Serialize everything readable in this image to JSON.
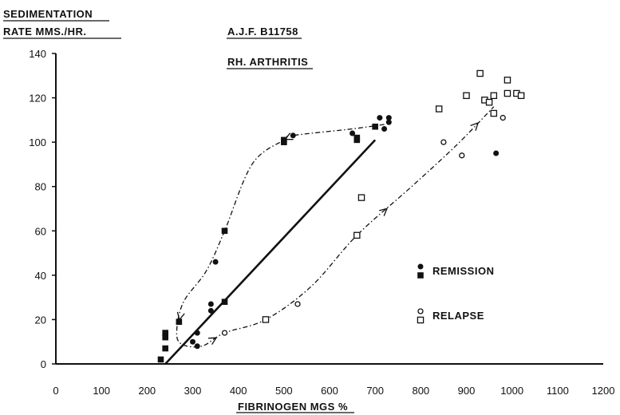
{
  "chart_data": {
    "type": "scatter",
    "title": "",
    "annotations": [
      "A.J.F.   B11758",
      "RH. ARTHRITIS"
    ],
    "ylabel_lines": [
      "SEDIMENTATION",
      "RATE MMS./HR."
    ],
    "xlabel": "FIBRINOGEN  MGS %",
    "xlim": [
      0,
      1200
    ],
    "ylim": [
      0,
      140
    ],
    "xticks": [
      0,
      100,
      200,
      300,
      400,
      500,
      600,
      700,
      800,
      900,
      1000,
      1100,
      1200
    ],
    "yticks": [
      0,
      20,
      40,
      60,
      80,
      100,
      120,
      140
    ],
    "xtick_labels": [
      "0",
      "100",
      "200",
      "300",
      "400",
      "500",
      "600",
      "700",
      "800",
      "900",
      "1000",
      "1100",
      "1200"
    ],
    "ytick_labels": [
      "0",
      "20",
      "40",
      "60",
      "80",
      "100",
      "120",
      "140"
    ],
    "legend": [
      {
        "label": "REMISSION",
        "markers": [
          "filled-circle",
          "filled-square"
        ]
      },
      {
        "label": "RELAPSE",
        "markers": [
          "open-circle",
          "open-square"
        ]
      }
    ],
    "series": [
      {
        "name": "REMISSION",
        "marker": "filled-circle",
        "points": [
          [
            300,
            10
          ],
          [
            310,
            8
          ],
          [
            310,
            14
          ],
          [
            340,
            24
          ],
          [
            340,
            27
          ],
          [
            350,
            46
          ],
          [
            520,
            103
          ],
          [
            650,
            104
          ],
          [
            710,
            111
          ],
          [
            720,
            106
          ],
          [
            730,
            109
          ],
          [
            730,
            111
          ],
          [
            965,
            95
          ]
        ]
      },
      {
        "name": "REMISSION",
        "marker": "filled-square",
        "points": [
          [
            230,
            2
          ],
          [
            240,
            7
          ],
          [
            240,
            12
          ],
          [
            240,
            14
          ],
          [
            270,
            19
          ],
          [
            370,
            28
          ],
          [
            370,
            60
          ],
          [
            500,
            100
          ],
          [
            500,
            101
          ],
          [
            660,
            101
          ],
          [
            660,
            102
          ],
          [
            700,
            107
          ]
        ]
      },
      {
        "name": "RELAPSE",
        "marker": "open-circle",
        "points": [
          [
            370,
            14
          ],
          [
            530,
            27
          ],
          [
            850,
            100
          ],
          [
            890,
            94
          ],
          [
            980,
            111
          ]
        ]
      },
      {
        "name": "RELAPSE",
        "marker": "open-square",
        "points": [
          [
            460,
            20
          ],
          [
            660,
            58
          ],
          [
            670,
            75
          ],
          [
            840,
            115
          ],
          [
            900,
            121
          ],
          [
            930,
            131
          ],
          [
            940,
            119
          ],
          [
            950,
            118
          ],
          [
            960,
            113
          ],
          [
            960,
            121
          ],
          [
            990,
            122
          ],
          [
            990,
            128
          ],
          [
            1010,
            122
          ],
          [
            1020,
            121
          ]
        ]
      }
    ],
    "regression_line": {
      "from": [
        240,
        0
      ],
      "to": [
        700,
        101
      ]
    },
    "paths": [
      {
        "style": "dashed",
        "points": [
          [
            720,
            108
          ],
          [
            650,
            106
          ],
          [
            520,
            103
          ],
          [
            500,
            101
          ],
          [
            430,
            90
          ],
          [
            370,
            60
          ],
          [
            330,
            42
          ],
          [
            280,
            28
          ],
          [
            265,
            15
          ],
          [
            275,
            9
          ],
          [
            320,
            8
          ],
          [
            370,
            14
          ],
          [
            460,
            20
          ],
          [
            560,
            35
          ],
          [
            660,
            58
          ],
          [
            780,
            80
          ],
          [
            880,
            99
          ],
          [
            960,
            116
          ]
        ]
      }
    ]
  }
}
